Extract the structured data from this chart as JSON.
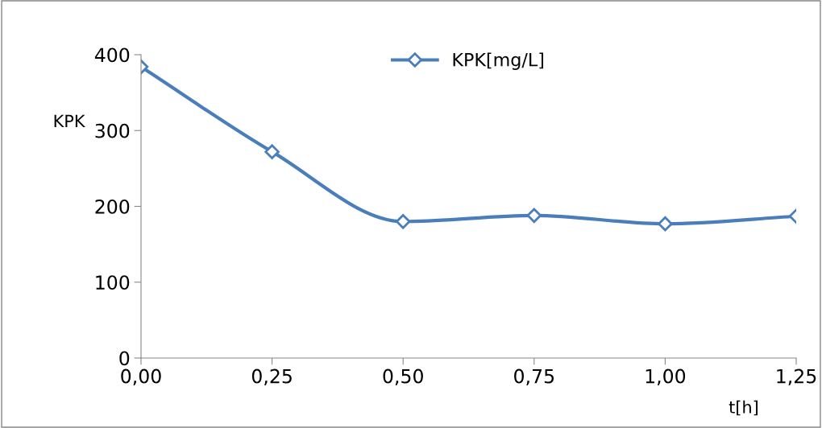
{
  "chart_data": {
    "type": "line",
    "xlabel": "t[h]",
    "ylabel": "KPK",
    "x": [
      0,
      0.25,
      0.5,
      0.75,
      1.0,
      1.25
    ],
    "series": [
      {
        "name": "KPK[mg/L]",
        "color": "#4a7ebb",
        "values": [
          384,
          272,
          180,
          188,
          177,
          187
        ]
      }
    ],
    "xlim": [
      0,
      1.25
    ],
    "xticks": [
      {
        "value": 0,
        "label": "0,00"
      },
      {
        "value": 0.25,
        "label": "0,25"
      },
      {
        "value": 0.5,
        "label": "0,50"
      },
      {
        "value": 0.75,
        "label": "0,75"
      },
      {
        "value": 1.0,
        "label": "1,00"
      },
      {
        "value": 1.25,
        "label": "1,25"
      }
    ],
    "ylim": [
      0,
      400
    ],
    "yticks": [
      0,
      100,
      200,
      300,
      400
    ],
    "grid": false,
    "legend": "top",
    "marker": "diamond",
    "line_style": "solid"
  }
}
